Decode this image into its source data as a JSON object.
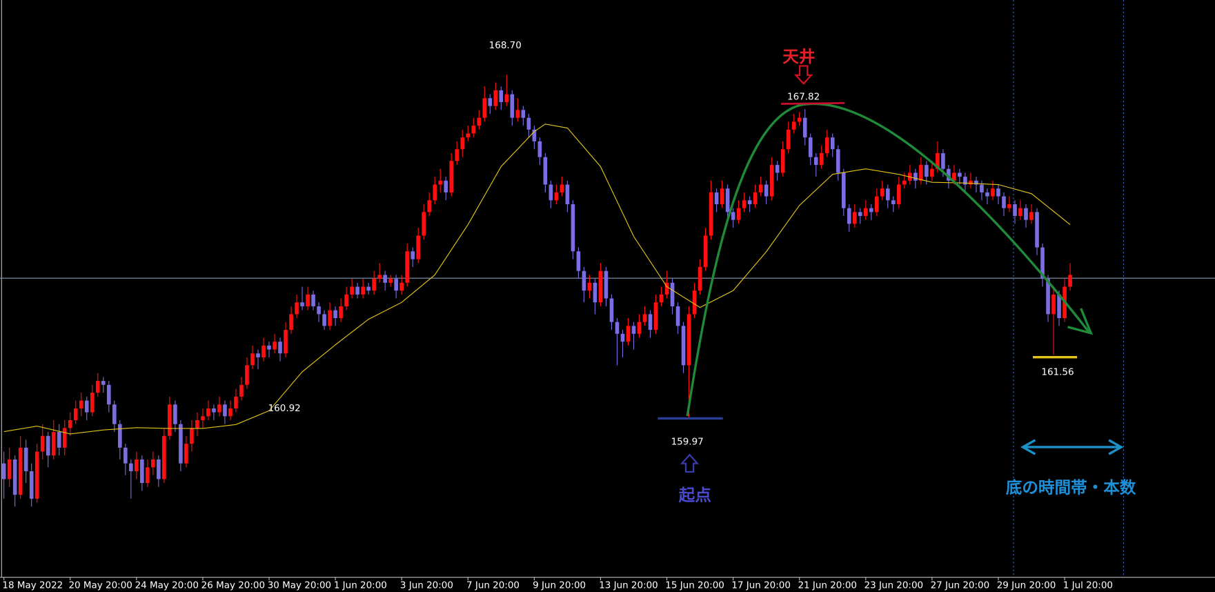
{
  "chart_data": {
    "type": "candlestick",
    "categories": [
      "18 May 2022",
      null,
      null,
      null,
      null,
      null,
      null,
      null,
      null,
      null,
      null,
      null,
      "20 May 20:00",
      null,
      null,
      null,
      null,
      null,
      null,
      null,
      null,
      null,
      null,
      null,
      "24 May 20:00",
      null,
      null,
      null,
      null,
      null,
      null,
      null,
      null,
      null,
      null,
      null,
      "26 May 20:00",
      null,
      null,
      null,
      null,
      null,
      null,
      null,
      null,
      null,
      null,
      null,
      "30 May 20:00",
      null,
      null,
      null,
      null,
      null,
      null,
      null,
      null,
      null,
      null,
      null,
      "1 Jun 20:00",
      null,
      null,
      null,
      null,
      null,
      null,
      null,
      null,
      null,
      null,
      null,
      "3 Jun 20:00",
      null,
      null,
      null,
      null,
      null,
      null,
      null,
      null,
      null,
      null,
      null,
      "7 Jun 20:00",
      null,
      null,
      null,
      null,
      null,
      null,
      null,
      null,
      null,
      null,
      null,
      "9 Jun 20:00",
      null,
      null,
      null,
      null,
      null,
      null,
      null,
      null,
      null,
      null,
      null,
      "13 Jun 20:00",
      null,
      null,
      null,
      null,
      null,
      null,
      null,
      null,
      null,
      null,
      null,
      "15 Jun 20:00",
      null,
      null,
      null,
      null,
      null,
      null,
      null,
      null,
      null,
      null,
      null,
      "17 Jun 20:00",
      null,
      null,
      null,
      null,
      null,
      null,
      null,
      null,
      null,
      null,
      null,
      "21 Jun 20:00",
      null,
      null,
      null,
      null,
      null,
      null,
      null,
      null,
      null,
      null,
      null,
      "23 Jun 20:00",
      null,
      null,
      null,
      null,
      null,
      null,
      null,
      null,
      null,
      null,
      null,
      "27 Jun 20:00",
      null,
      null,
      null,
      null,
      null,
      null,
      null,
      null,
      null,
      null,
      null,
      "29 Jun 20:00",
      null,
      null,
      null,
      null,
      null,
      null,
      null,
      null,
      null,
      null,
      null,
      "1 Jul 20:00",
      null
    ],
    "ohlc": [
      [
        158.8,
        159.1,
        157.9,
        158.4
      ],
      [
        158.4,
        159.2,
        158.2,
        158.9
      ],
      [
        158.9,
        159.0,
        157.7,
        158.0
      ],
      [
        158.0,
        159.5,
        157.9,
        159.2
      ],
      [
        159.2,
        159.4,
        158.3,
        158.6
      ],
      [
        158.6,
        158.8,
        157.7,
        157.9
      ],
      [
        157.9,
        159.3,
        157.8,
        159.1
      ],
      [
        159.1,
        159.8,
        158.9,
        159.5
      ],
      [
        159.5,
        159.6,
        158.7,
        159.0
      ],
      [
        159.0,
        159.9,
        158.9,
        159.6
      ],
      [
        159.6,
        159.8,
        159.0,
        159.2
      ],
      [
        159.2,
        159.9,
        159.0,
        159.7
      ],
      [
        159.7,
        160.1,
        159.5,
        159.9
      ],
      [
        159.9,
        160.4,
        159.8,
        160.2
      ],
      [
        160.2,
        160.6,
        160.0,
        160.4
      ],
      [
        160.4,
        160.5,
        159.9,
        160.1
      ],
      [
        160.1,
        160.8,
        160.0,
        160.6
      ],
      [
        160.6,
        161.1,
        160.5,
        160.9
      ],
      [
        160.9,
        161.0,
        160.6,
        160.8
      ],
      [
        160.8,
        160.9,
        160.1,
        160.3
      ],
      [
        160.3,
        160.4,
        159.6,
        159.8
      ],
      [
        159.8,
        159.9,
        158.9,
        159.2
      ],
      [
        159.2,
        159.3,
        158.5,
        158.8
      ],
      [
        158.8,
        158.9,
        157.9,
        158.6
      ],
      [
        158.6,
        159.1,
        158.4,
        158.9
      ],
      [
        158.9,
        159.0,
        158.1,
        158.3
      ],
      [
        158.3,
        158.9,
        158.2,
        158.7
      ],
      [
        158.7,
        159.1,
        158.5,
        158.9
      ],
      [
        158.9,
        159.0,
        158.2,
        158.4
      ],
      [
        158.4,
        159.7,
        158.3,
        159.5
      ],
      [
        159.5,
        160.5,
        159.4,
        160.3
      ],
      [
        160.3,
        160.4,
        159.6,
        159.8
      ],
      [
        159.8,
        159.9,
        158.6,
        158.8
      ],
      [
        158.8,
        159.5,
        158.7,
        159.3
      ],
      [
        159.3,
        159.9,
        159.1,
        159.7
      ],
      [
        159.7,
        160.1,
        159.5,
        159.9
      ],
      [
        159.9,
        160.2,
        159.7,
        160.0
      ],
      [
        160.0,
        160.4,
        159.9,
        160.2
      ],
      [
        160.2,
        160.3,
        159.9,
        160.1
      ],
      [
        160.1,
        160.5,
        160.0,
        160.3
      ],
      [
        160.3,
        160.4,
        159.8,
        160.0
      ],
      [
        160.0,
        160.4,
        159.9,
        160.2
      ],
      [
        160.2,
        160.7,
        160.1,
        160.5
      ],
      [
        160.5,
        161.0,
        160.4,
        160.8
      ],
      [
        160.8,
        161.5,
        160.7,
        161.3
      ],
      [
        161.3,
        161.8,
        161.2,
        161.6
      ],
      [
        161.6,
        161.7,
        161.2,
        161.5
      ],
      [
        161.5,
        162.0,
        161.4,
        161.8
      ],
      [
        161.8,
        161.9,
        161.5,
        161.7
      ],
      [
        161.7,
        162.1,
        161.6,
        161.9
      ],
      [
        161.9,
        162.0,
        161.4,
        161.6
      ],
      [
        161.6,
        162.4,
        161.5,
        162.2
      ],
      [
        162.2,
        162.8,
        162.1,
        162.6
      ],
      [
        162.6,
        163.1,
        162.5,
        162.9
      ],
      [
        162.9,
        163.3,
        162.7,
        162.8
      ],
      [
        162.8,
        163.3,
        162.7,
        163.1
      ],
      [
        163.1,
        163.2,
        162.7,
        162.8
      ],
      [
        162.8,
        162.9,
        162.4,
        162.6
      ],
      [
        162.6,
        162.7,
        162.2,
        162.3
      ],
      [
        162.3,
        162.9,
        162.2,
        162.7
      ],
      [
        162.7,
        162.8,
        162.3,
        162.5
      ],
      [
        162.5,
        163.0,
        162.4,
        162.8
      ],
      [
        162.8,
        163.3,
        162.7,
        163.1
      ],
      [
        163.1,
        163.5,
        163.0,
        163.3
      ],
      [
        163.3,
        163.4,
        163.0,
        163.1
      ],
      [
        163.1,
        163.5,
        163.0,
        163.3
      ],
      [
        163.3,
        163.4,
        163.1,
        163.2
      ],
      [
        163.2,
        163.7,
        163.1,
        163.5
      ],
      [
        163.5,
        163.9,
        163.4,
        163.6
      ],
      [
        163.6,
        163.7,
        163.2,
        163.4
      ],
      [
        163.4,
        163.6,
        163.3,
        163.5
      ],
      [
        163.5,
        163.6,
        163.0,
        163.2
      ],
      [
        163.2,
        163.6,
        163.1,
        163.4
      ],
      [
        163.4,
        164.4,
        163.3,
        164.2
      ],
      [
        164.2,
        164.3,
        163.8,
        164.0
      ],
      [
        164.0,
        164.8,
        163.9,
        164.6
      ],
      [
        164.6,
        165.4,
        164.5,
        165.2
      ],
      [
        165.2,
        165.7,
        165.1,
        165.5
      ],
      [
        165.5,
        166.1,
        165.4,
        165.9
      ],
      [
        165.9,
        166.3,
        165.7,
        166.0
      ],
      [
        166.0,
        166.1,
        165.5,
        165.7
      ],
      [
        165.7,
        166.7,
        165.6,
        166.5
      ],
      [
        166.5,
        167.0,
        166.4,
        166.8
      ],
      [
        166.8,
        167.3,
        166.6,
        167.1
      ],
      [
        167.1,
        167.4,
        167.0,
        167.2
      ],
      [
        167.2,
        167.6,
        167.1,
        167.4
      ],
      [
        167.4,
        167.8,
        167.3,
        167.6
      ],
      [
        167.6,
        168.4,
        167.5,
        168.1
      ],
      [
        168.1,
        168.2,
        167.7,
        167.9
      ],
      [
        167.9,
        168.5,
        167.8,
        168.3
      ],
      [
        168.3,
        168.4,
        167.8,
        168.0
      ],
      [
        168.0,
        168.7,
        167.9,
        168.2
      ],
      [
        168.2,
        168.3,
        167.4,
        167.6
      ],
      [
        167.6,
        168.1,
        167.5,
        167.8
      ],
      [
        167.8,
        167.9,
        167.4,
        167.6
      ],
      [
        167.6,
        167.7,
        167.1,
        167.3
      ],
      [
        167.3,
        167.4,
        166.8,
        167.0
      ],
      [
        167.0,
        167.1,
        166.4,
        166.6
      ],
      [
        166.6,
        166.7,
        165.7,
        165.9
      ],
      [
        165.9,
        166.0,
        165.3,
        165.5
      ],
      [
        165.5,
        165.9,
        165.4,
        165.7
      ],
      [
        165.7,
        166.1,
        165.6,
        165.9
      ],
      [
        165.9,
        166.0,
        165.2,
        165.4
      ],
      [
        165.4,
        165.5,
        164.0,
        164.2
      ],
      [
        164.2,
        164.3,
        163.5,
        163.7
      ],
      [
        163.7,
        163.8,
        162.9,
        163.2
      ],
      [
        163.2,
        163.6,
        163.0,
        163.4
      ],
      [
        163.4,
        163.5,
        162.6,
        162.9
      ],
      [
        162.9,
        163.9,
        162.8,
        163.7
      ],
      [
        163.7,
        163.8,
        162.8,
        163.0
      ],
      [
        163.0,
        163.1,
        162.2,
        162.4
      ],
      [
        162.4,
        162.5,
        161.3,
        162.1
      ],
      [
        162.1,
        162.2,
        161.5,
        161.9
      ],
      [
        161.9,
        162.5,
        161.8,
        162.3
      ],
      [
        162.3,
        162.4,
        161.7,
        162.1
      ],
      [
        162.1,
        162.6,
        162.0,
        162.4
      ],
      [
        162.4,
        162.8,
        162.3,
        162.6
      ],
      [
        162.6,
        162.7,
        162.0,
        162.2
      ],
      [
        162.2,
        163.1,
        162.1,
        162.9
      ],
      [
        162.9,
        163.3,
        162.8,
        163.1
      ],
      [
        163.1,
        163.7,
        163.0,
        163.4
      ],
      [
        163.4,
        163.5,
        162.6,
        162.8
      ],
      [
        162.8,
        162.9,
        162.1,
        162.3
      ],
      [
        162.3,
        162.4,
        161.1,
        161.3
      ],
      [
        161.3,
        162.8,
        159.97,
        162.6
      ],
      [
        162.6,
        163.4,
        162.5,
        163.2
      ],
      [
        163.2,
        164.0,
        163.1,
        163.8
      ],
      [
        163.8,
        164.8,
        163.7,
        164.6
      ],
      [
        164.6,
        166.0,
        164.5,
        165.7
      ],
      [
        165.7,
        165.8,
        165.2,
        165.4
      ],
      [
        165.4,
        166.0,
        165.3,
        165.8
      ],
      [
        165.8,
        165.9,
        165.0,
        165.2
      ],
      [
        165.2,
        165.3,
        164.8,
        165.0
      ],
      [
        165.0,
        165.5,
        164.9,
        165.3
      ],
      [
        165.3,
        165.7,
        165.2,
        165.5
      ],
      [
        165.5,
        165.6,
        165.2,
        165.4
      ],
      [
        165.4,
        165.9,
        165.3,
        165.7
      ],
      [
        165.7,
        166.1,
        165.6,
        165.9
      ],
      [
        165.9,
        166.0,
        165.4,
        165.6
      ],
      [
        165.6,
        166.6,
        165.5,
        166.4
      ],
      [
        166.4,
        166.5,
        166.0,
        166.2
      ],
      [
        166.2,
        167.0,
        166.1,
        166.8
      ],
      [
        166.8,
        167.5,
        166.7,
        167.3
      ],
      [
        167.3,
        167.7,
        167.2,
        167.5
      ],
      [
        167.5,
        167.75,
        167.4,
        167.6
      ],
      [
        167.6,
        167.82,
        166.9,
        167.1
      ],
      [
        167.1,
        167.2,
        166.4,
        166.6
      ],
      [
        166.6,
        166.7,
        166.1,
        166.4
      ],
      [
        166.4,
        166.9,
        166.3,
        166.7
      ],
      [
        166.7,
        167.3,
        166.6,
        167.1
      ],
      [
        167.1,
        167.2,
        166.6,
        166.8
      ],
      [
        166.8,
        166.9,
        166.0,
        166.2
      ],
      [
        166.2,
        166.3,
        165.1,
        165.3
      ],
      [
        165.3,
        165.4,
        164.7,
        164.9
      ],
      [
        164.9,
        165.4,
        164.8,
        165.2
      ],
      [
        165.2,
        165.3,
        164.9,
        165.1
      ],
      [
        165.1,
        165.5,
        165.0,
        165.3
      ],
      [
        165.3,
        165.4,
        165.0,
        165.2
      ],
      [
        165.2,
        165.8,
        165.1,
        165.6
      ],
      [
        165.6,
        166.0,
        165.5,
        165.8
      ],
      [
        165.8,
        165.9,
        165.3,
        165.5
      ],
      [
        165.5,
        165.6,
        165.2,
        165.4
      ],
      [
        165.4,
        166.1,
        165.3,
        165.9
      ],
      [
        165.9,
        166.2,
        165.8,
        166.0
      ],
      [
        166.0,
        166.4,
        165.9,
        166.2
      ],
      [
        166.2,
        166.3,
        165.8,
        166.0
      ],
      [
        166.0,
        166.6,
        165.9,
        166.4
      ],
      [
        166.4,
        166.5,
        165.9,
        166.1
      ],
      [
        166.1,
        166.5,
        166.0,
        166.3
      ],
      [
        166.3,
        167.0,
        166.2,
        166.7
      ],
      [
        166.7,
        166.8,
        166.1,
        166.3
      ],
      [
        166.3,
        166.4,
        165.8,
        166.0
      ],
      [
        166.0,
        166.4,
        165.9,
        166.2
      ],
      [
        166.2,
        166.3,
        165.9,
        166.1
      ],
      [
        166.1,
        166.2,
        165.7,
        165.9
      ],
      [
        165.9,
        166.2,
        165.8,
        166.0
      ],
      [
        166.0,
        166.1,
        165.7,
        165.9
      ],
      [
        165.9,
        166.0,
        165.5,
        165.7
      ],
      [
        165.7,
        165.8,
        165.4,
        165.6
      ],
      [
        165.6,
        166.0,
        165.5,
        165.8
      ],
      [
        165.8,
        165.9,
        165.4,
        165.6
      ],
      [
        165.6,
        165.7,
        165.1,
        165.3
      ],
      [
        165.3,
        165.6,
        165.2,
        165.4
      ],
      [
        165.4,
        165.5,
        164.9,
        165.1
      ],
      [
        165.1,
        165.5,
        165.0,
        165.3
      ],
      [
        165.3,
        165.4,
        164.8,
        165.0
      ],
      [
        165.0,
        165.4,
        164.9,
        165.2
      ],
      [
        165.2,
        165.3,
        164.1,
        164.3
      ],
      [
        164.3,
        164.4,
        163.3,
        163.5
      ],
      [
        163.5,
        163.6,
        162.4,
        162.6
      ],
      [
        162.6,
        163.3,
        161.56,
        163.1
      ],
      [
        163.1,
        163.2,
        162.3,
        162.5
      ],
      [
        162.5,
        163.5,
        162.4,
        163.3
      ],
      [
        163.3,
        163.9,
        163.2,
        163.6
      ]
    ],
    "up_color": "#ff1010",
    "down_color": "#7b6ee0",
    "ylim": [
      155.9,
      170.6
    ],
    "moving_average": {
      "color": "#e6c619",
      "x": [
        0,
        6,
        12,
        18,
        24,
        30,
        36,
        42,
        48,
        54,
        60,
        66,
        72,
        78,
        84,
        90,
        96,
        98,
        102,
        108,
        114,
        120,
        126,
        132,
        138,
        144,
        150,
        156,
        162,
        168,
        174,
        180,
        186,
        193
      ],
      "values": [
        159.61,
        159.75,
        159.55,
        159.65,
        159.71,
        159.69,
        159.69,
        159.79,
        160.14,
        161.13,
        161.82,
        162.47,
        162.9,
        163.6,
        164.88,
        166.36,
        167.25,
        167.44,
        167.34,
        166.36,
        164.58,
        163.3,
        162.77,
        163.2,
        164.19,
        165.37,
        166.16,
        166.3,
        166.16,
        165.96,
        165.94,
        165.9,
        165.67,
        164.88
      ]
    },
    "price_labels": [
      {
        "value": 168.7,
        "label": "168.70"
      },
      {
        "value": 160.92,
        "label": "160.92"
      },
      {
        "value": 159.97,
        "label": "159.97"
      },
      {
        "value": 167.82,
        "label": "167.82"
      },
      {
        "value": 161.56,
        "label": "161.56"
      }
    ],
    "notes": [
      "天井",
      "起点",
      "底の時間帯・本数"
    ]
  }
}
